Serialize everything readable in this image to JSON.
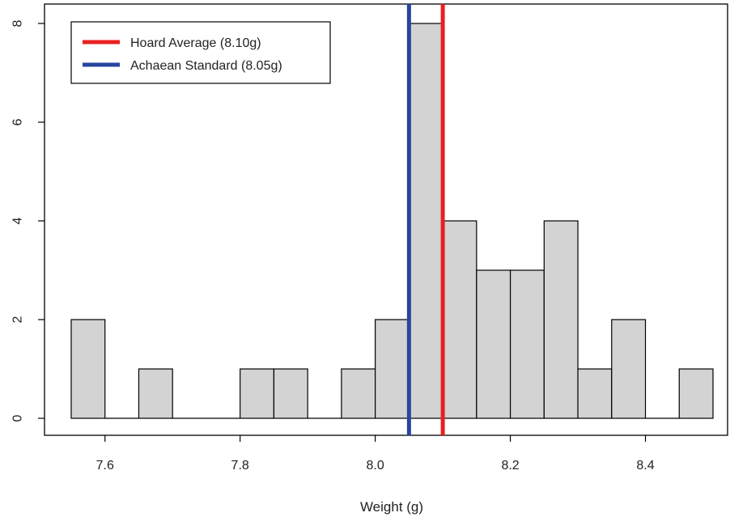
{
  "chart_data": {
    "type": "bar",
    "title": "",
    "xlabel": "Weight (g)",
    "ylabel": "",
    "bin_width": 0.05,
    "bins": [
      {
        "start": 7.55,
        "end": 7.6,
        "count": 2
      },
      {
        "start": 7.6,
        "end": 7.65,
        "count": 0
      },
      {
        "start": 7.65,
        "end": 7.7,
        "count": 1
      },
      {
        "start": 7.7,
        "end": 7.75,
        "count": 0
      },
      {
        "start": 7.75,
        "end": 7.8,
        "count": 0
      },
      {
        "start": 7.8,
        "end": 7.85,
        "count": 1
      },
      {
        "start": 7.85,
        "end": 7.9,
        "count": 1
      },
      {
        "start": 7.9,
        "end": 7.95,
        "count": 0
      },
      {
        "start": 7.95,
        "end": 8.0,
        "count": 1
      },
      {
        "start": 8.0,
        "end": 8.05,
        "count": 2
      },
      {
        "start": 8.05,
        "end": 8.1,
        "count": 8
      },
      {
        "start": 8.1,
        "end": 8.15,
        "count": 4
      },
      {
        "start": 8.15,
        "end": 8.2,
        "count": 3
      },
      {
        "start": 8.2,
        "end": 8.25,
        "count": 3
      },
      {
        "start": 8.25,
        "end": 8.3,
        "count": 4
      },
      {
        "start": 8.3,
        "end": 8.35,
        "count": 1
      },
      {
        "start": 8.35,
        "end": 8.4,
        "count": 2
      },
      {
        "start": 8.4,
        "end": 8.45,
        "count": 0
      },
      {
        "start": 8.45,
        "end": 8.5,
        "count": 1
      }
    ],
    "xlim": [
      7.55,
      8.5
    ],
    "ylim": [
      0,
      8
    ],
    "x_ticks": [
      {
        "value": 7.6,
        "label": "7.6"
      },
      {
        "value": 7.8,
        "label": "7.8"
      },
      {
        "value": 8.0,
        "label": "8.0"
      },
      {
        "value": 8.2,
        "label": "8.2"
      },
      {
        "value": 8.4,
        "label": "8.4"
      }
    ],
    "y_ticks": [
      {
        "value": 0,
        "label": "0"
      },
      {
        "value": 2,
        "label": "2"
      },
      {
        "value": 4,
        "label": "4"
      },
      {
        "value": 6,
        "label": "6"
      },
      {
        "value": 8,
        "label": "8"
      }
    ],
    "bar_fill": "#d3d3d3",
    "bar_stroke": "#000000",
    "reference_lines": [
      {
        "name": "Hoard Average (8.10g)",
        "x": 8.1,
        "color": "#e8201f"
      },
      {
        "name": "Achaean Standard (8.05g)",
        "x": 8.05,
        "color": "#2545a0"
      }
    ],
    "legend": {
      "position": "top-left"
    },
    "grid": false
  }
}
